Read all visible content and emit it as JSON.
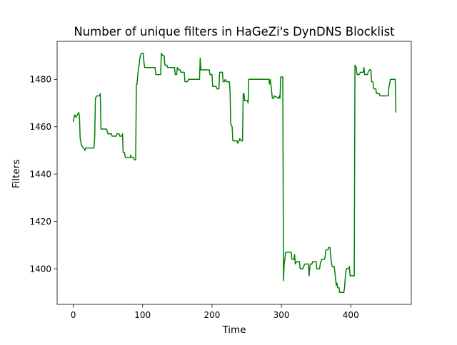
{
  "chart_data": {
    "type": "line",
    "title": "Number of unique filters in HaGeZi's DynDNS Blocklist",
    "xlabel": "Time",
    "ylabel": "Filters",
    "xlim": [
      -23.2,
      487.2
    ],
    "ylim": [
      1384.95,
      1496.05
    ],
    "xticks": [
      0,
      100,
      200,
      300,
      400
    ],
    "yticks": [
      1400,
      1420,
      1440,
      1460,
      1480
    ],
    "grid": false,
    "legend": "none",
    "series": [
      {
        "color": "#008000",
        "points": [
          [
            0,
            1462
          ],
          [
            2,
            1465
          ],
          [
            4,
            1464
          ],
          [
            6,
            1465
          ],
          [
            8,
            1466
          ],
          [
            9,
            1464
          ],
          [
            10,
            1455
          ],
          [
            12,
            1452
          ],
          [
            15,
            1451
          ],
          [
            17,
            1450
          ],
          [
            18,
            1451
          ],
          [
            30,
            1451
          ],
          [
            31,
            1456
          ],
          [
            32,
            1472
          ],
          [
            34,
            1473
          ],
          [
            38,
            1473
          ],
          [
            39,
            1474
          ],
          [
            40,
            1459
          ],
          [
            48,
            1459
          ],
          [
            49,
            1458
          ],
          [
            50,
            1457
          ],
          [
            55,
            1457
          ],
          [
            56,
            1456
          ],
          [
            62,
            1456
          ],
          [
            63,
            1457
          ],
          [
            66,
            1457
          ],
          [
            67,
            1456
          ],
          [
            70,
            1456
          ],
          [
            71,
            1457
          ],
          [
            72,
            1449
          ],
          [
            74,
            1449
          ],
          [
            75,
            1447
          ],
          [
            82,
            1447
          ],
          [
            83,
            1448
          ],
          [
            84,
            1447
          ],
          [
            87,
            1447
          ],
          [
            88,
            1446
          ],
          [
            90,
            1446
          ],
          [
            91,
            1478
          ],
          [
            92,
            1478
          ],
          [
            93,
            1482
          ],
          [
            95,
            1486
          ],
          [
            96,
            1489
          ],
          [
            98,
            1491
          ],
          [
            101,
            1491
          ],
          [
            102,
            1487
          ],
          [
            103,
            1485
          ],
          [
            118,
            1485
          ],
          [
            119,
            1482
          ],
          [
            126,
            1482
          ],
          [
            127,
            1491
          ],
          [
            129,
            1490
          ],
          [
            131,
            1490
          ],
          [
            132,
            1486
          ],
          [
            135,
            1486
          ],
          [
            136,
            1485
          ],
          [
            146,
            1485
          ],
          [
            147,
            1482
          ],
          [
            149,
            1482
          ],
          [
            150,
            1485
          ],
          [
            152,
            1484
          ],
          [
            154,
            1484
          ],
          [
            155,
            1483
          ],
          [
            160,
            1483
          ],
          [
            161,
            1479
          ],
          [
            165,
            1479
          ],
          [
            166,
            1480
          ],
          [
            182,
            1480
          ],
          [
            183,
            1489
          ],
          [
            184,
            1484
          ],
          [
            196,
            1484
          ],
          [
            197,
            1482
          ],
          [
            200,
            1482
          ],
          [
            201,
            1477
          ],
          [
            206,
            1477
          ],
          [
            207,
            1476
          ],
          [
            210,
            1476
          ],
          [
            211,
            1483
          ],
          [
            215,
            1483
          ],
          [
            216,
            1479
          ],
          [
            218,
            1479
          ],
          [
            219,
            1480
          ],
          [
            221,
            1479
          ],
          [
            225,
            1479
          ],
          [
            226,
            1475
          ],
          [
            227,
            1461
          ],
          [
            229,
            1460
          ],
          [
            230,
            1454
          ],
          [
            236,
            1454
          ],
          [
            237,
            1453
          ],
          [
            239,
            1454
          ],
          [
            240,
            1455
          ],
          [
            242,
            1454
          ],
          [
            244,
            1454
          ],
          [
            245,
            1474
          ],
          [
            246,
            1474
          ],
          [
            247,
            1471
          ],
          [
            251,
            1471
          ],
          [
            252,
            1470
          ],
          [
            253,
            1480
          ],
          [
            282,
            1480
          ],
          [
            283,
            1478
          ],
          [
            284,
            1480
          ],
          [
            287,
            1472
          ],
          [
            289,
            1472
          ],
          [
            290,
            1473
          ],
          [
            296,
            1472
          ],
          [
            297,
            1473
          ],
          [
            298,
            1472
          ],
          [
            299,
            1481
          ],
          [
            302,
            1481
          ],
          [
            303,
            1395
          ],
          [
            304,
            1402
          ],
          [
            305,
            1404
          ],
          [
            306,
            1407
          ],
          [
            314,
            1407
          ],
          [
            315,
            1404
          ],
          [
            318,
            1404
          ],
          [
            319,
            1406
          ],
          [
            320,
            1402
          ],
          [
            322,
            1403
          ],
          [
            326,
            1403
          ],
          [
            327,
            1400
          ],
          [
            331,
            1400
          ],
          [
            332,
            1401
          ],
          [
            334,
            1402
          ],
          [
            339,
            1402
          ],
          [
            340,
            1397
          ],
          [
            341,
            1401
          ],
          [
            342,
            1402
          ],
          [
            344,
            1402
          ],
          [
            345,
            1403
          ],
          [
            350,
            1403
          ],
          [
            351,
            1400
          ],
          [
            355,
            1400
          ],
          [
            356,
            1402
          ],
          [
            358,
            1404
          ],
          [
            362,
            1404
          ],
          [
            363,
            1405
          ],
          [
            364,
            1408
          ],
          [
            367,
            1408
          ],
          [
            368,
            1409
          ],
          [
            370,
            1409
          ],
          [
            371,
            1405
          ],
          [
            373,
            1401
          ],
          [
            376,
            1401
          ],
          [
            377,
            1399
          ],
          [
            379,
            1393
          ],
          [
            380,
            1394
          ],
          [
            381,
            1392
          ],
          [
            383,
            1392
          ],
          [
            384,
            1390
          ],
          [
            390,
            1390
          ],
          [
            391,
            1392
          ],
          [
            392,
            1396
          ],
          [
            393,
            1399
          ],
          [
            394,
            1400
          ],
          [
            397,
            1400
          ],
          [
            398,
            1401
          ],
          [
            399,
            1397
          ],
          [
            405,
            1397
          ],
          [
            406,
            1486
          ],
          [
            408,
            1485
          ],
          [
            409,
            1482
          ],
          [
            412,
            1482
          ],
          [
            414,
            1483
          ],
          [
            418,
            1483
          ],
          [
            419,
            1485
          ],
          [
            420,
            1482
          ],
          [
            424,
            1482
          ],
          [
            425,
            1483
          ],
          [
            427,
            1484
          ],
          [
            429,
            1484
          ],
          [
            430,
            1479
          ],
          [
            432,
            1479
          ],
          [
            433,
            1476
          ],
          [
            436,
            1476
          ],
          [
            437,
            1474
          ],
          [
            441,
            1474
          ],
          [
            442,
            1473
          ],
          [
            454,
            1473
          ],
          [
            455,
            1477
          ],
          [
            456,
            1478
          ],
          [
            457,
            1480
          ],
          [
            464,
            1480
          ],
          [
            465,
            1466
          ]
        ]
      }
    ]
  }
}
